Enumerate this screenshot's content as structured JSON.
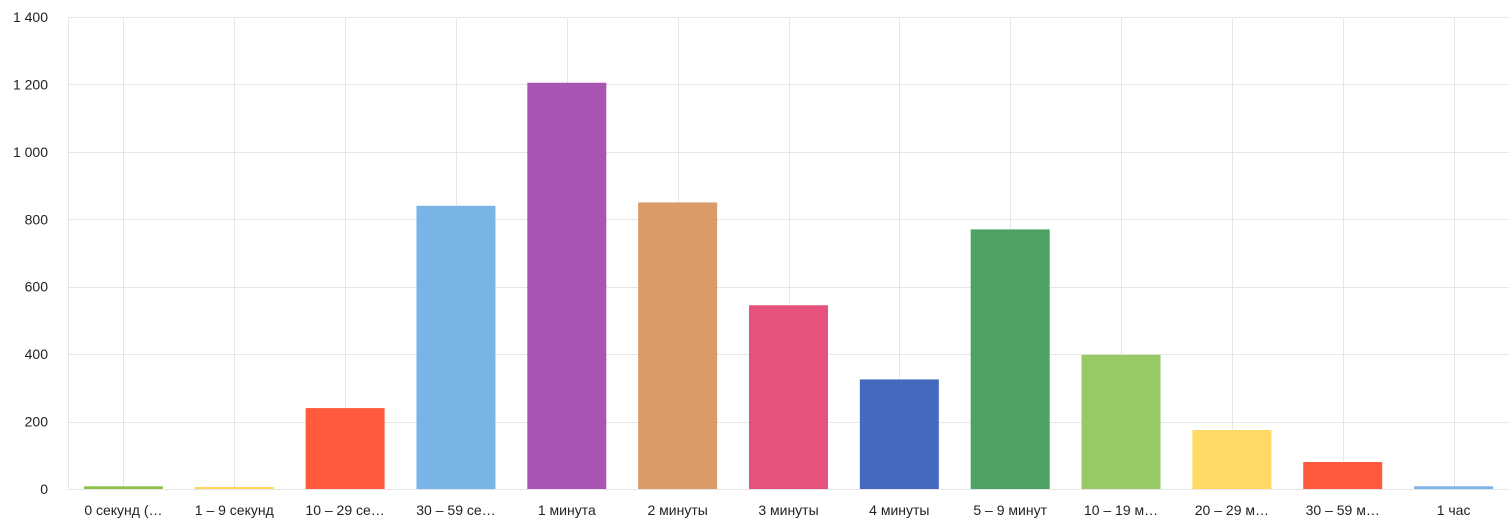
{
  "chart_data": {
    "type": "bar",
    "title": "",
    "xlabel": "",
    "ylabel": "",
    "ylim": [
      0,
      1400
    ],
    "yticks": [
      0,
      200,
      400,
      600,
      800,
      1000,
      1200,
      1400
    ],
    "ytick_labels": [
      "0",
      "200",
      "400",
      "600",
      "800",
      "1 000",
      "1 200",
      "1 400"
    ],
    "grid": true,
    "legend": "none",
    "categories": [
      "0 секунд (…",
      "1 – 9 секунд",
      "10 – 29 се…",
      "30 – 59 се…",
      "1 минута",
      "2 минуты",
      "3 минуты",
      "4 минуты",
      "5 – 9 минут",
      "10 – 19 м…",
      "20 – 29 м…",
      "30 – 59 м…",
      "1 час"
    ],
    "values": [
      8,
      6,
      240,
      840,
      1205,
      850,
      545,
      325,
      770,
      398,
      175,
      80,
      8
    ],
    "colors": [
      "#8bc34a",
      "#ffd65a",
      "#ff5a3c",
      "#7ab4e6",
      "#a855b4",
      "#da9b69",
      "#e7527c",
      "#4469bd",
      "#4ea265",
      "#97c964",
      "#ffd966",
      "#ff5a3c",
      "#7ab4e6"
    ],
    "grid_color": "#e6e6e6"
  }
}
